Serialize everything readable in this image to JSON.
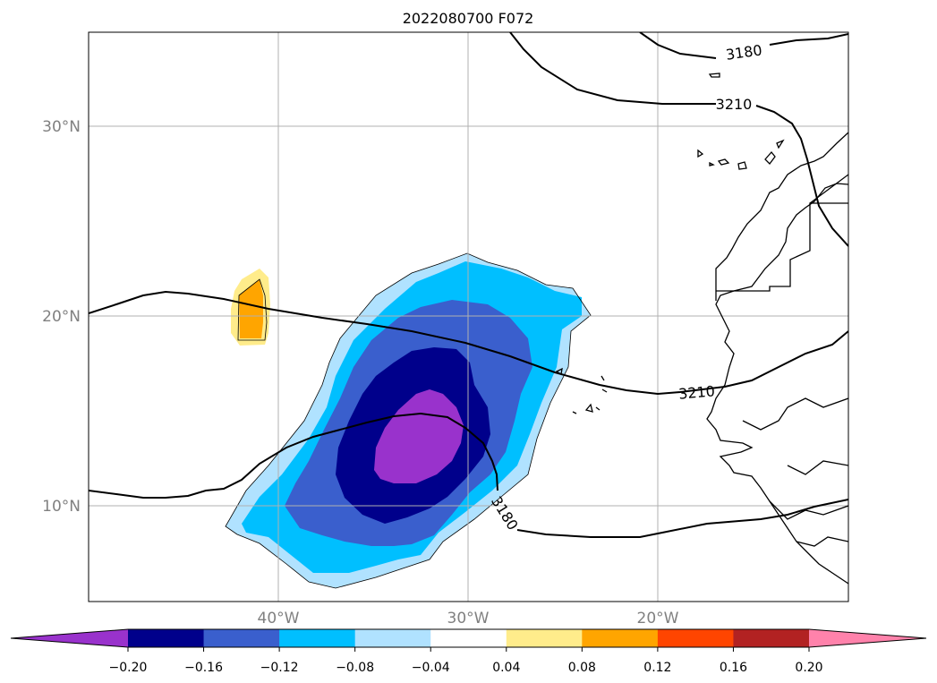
{
  "title": "2022080700 F072",
  "axes": {
    "lat_labels": [
      "30°N",
      "20°N",
      "10°N"
    ],
    "lon_labels": [
      "40°W",
      "30°W",
      "20°W"
    ]
  },
  "contours": {
    "labels": [
      "3180",
      "3210",
      "3210",
      "3180"
    ]
  },
  "colorbar": {
    "levels": [
      "−0.20",
      "−0.16",
      "−0.12",
      "−0.08",
      "−0.04",
      "0.04",
      "0.08",
      "0.12",
      "0.16",
      "0.20"
    ],
    "colors": [
      "#9932cc",
      "#00008b",
      "#3a5fcd",
      "#00bfff",
      "#b0e2ff",
      "#ffffff",
      "#ffec8b",
      "#ffa500",
      "#ff4500",
      "#b22222",
      "#ff82ab"
    ]
  },
  "colors": {
    "neg_0_04": "#b0e2ff",
    "neg_0_08": "#00bfff",
    "neg_0_12": "#3a5fcd",
    "neg_0_16": "#00008b",
    "neg_0_20": "#9932cc",
    "pos_0_04": "#ffec8b",
    "pos_0_08": "#ffa500"
  }
}
